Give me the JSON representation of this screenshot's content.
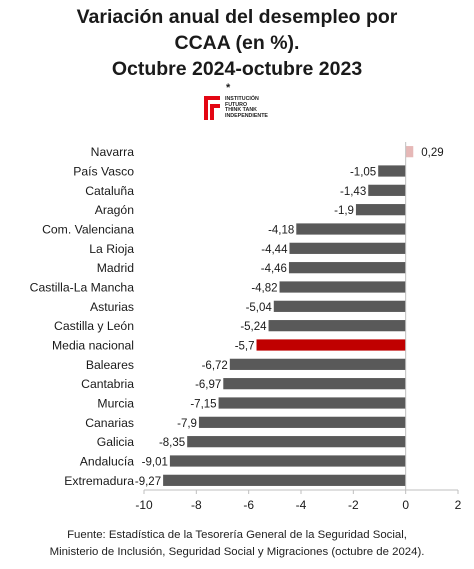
{
  "title": {
    "line1": "Variación anual del desempleo por",
    "line2": "CCAA (en %).",
    "line3": "Octubre 2024-octubre 2023",
    "marker": "*"
  },
  "logo": {
    "lines": [
      "INSTITUCIÓN",
      "FUTURO",
      "THINK TANK",
      "INDEPENDIENTE"
    ],
    "color": "#e30613"
  },
  "chart_data": {
    "type": "bar",
    "orientation": "horizontal",
    "categories": [
      "Navarra",
      "País Vasco",
      "Cataluña",
      "Aragón",
      "Com. Valenciana",
      "La Rioja",
      "Madrid",
      "Castilla-La Mancha",
      "Asturias",
      "Castilla y León",
      "Media nacional",
      "Baleares",
      "Cantabria",
      "Murcia",
      "Canarias",
      "Galicia",
      "Andalucía",
      "Extremadura"
    ],
    "values": [
      0.29,
      -1.05,
      -1.43,
      -1.9,
      -4.18,
      -4.44,
      -4.46,
      -4.82,
      -5.04,
      -5.24,
      -5.7,
      -6.72,
      -6.97,
      -7.15,
      -7.9,
      -8.35,
      -9.01,
      -9.27
    ],
    "value_labels": [
      "0,29",
      "-1,05",
      "-1,43",
      "-1,9",
      "-4,18",
      "-4,44",
      "-4,46",
      "-4,82",
      "-5,04",
      "-5,24",
      "-5,7",
      "-6,72",
      "-6,97",
      "-7,15",
      "-7,9",
      "-8,35",
      "-9,01",
      "-9,27"
    ],
    "xlim": [
      -10,
      2
    ],
    "xticks": [
      -10,
      -8,
      -6,
      -4,
      -2,
      0,
      2
    ],
    "grid": false,
    "colors": {
      "negative": "#595959",
      "positive": "#e6b8b7",
      "highlight": "#c00000",
      "axis": "#bfbfbf"
    },
    "highlight_category": "Media nacional"
  },
  "footer": {
    "line1": "Fuente: Estadística de la Tesorería General de la Seguridad Social,",
    "line2": "Ministerio de Inclusión, Seguridad Social y Migraciones (octubre de 2024)."
  }
}
